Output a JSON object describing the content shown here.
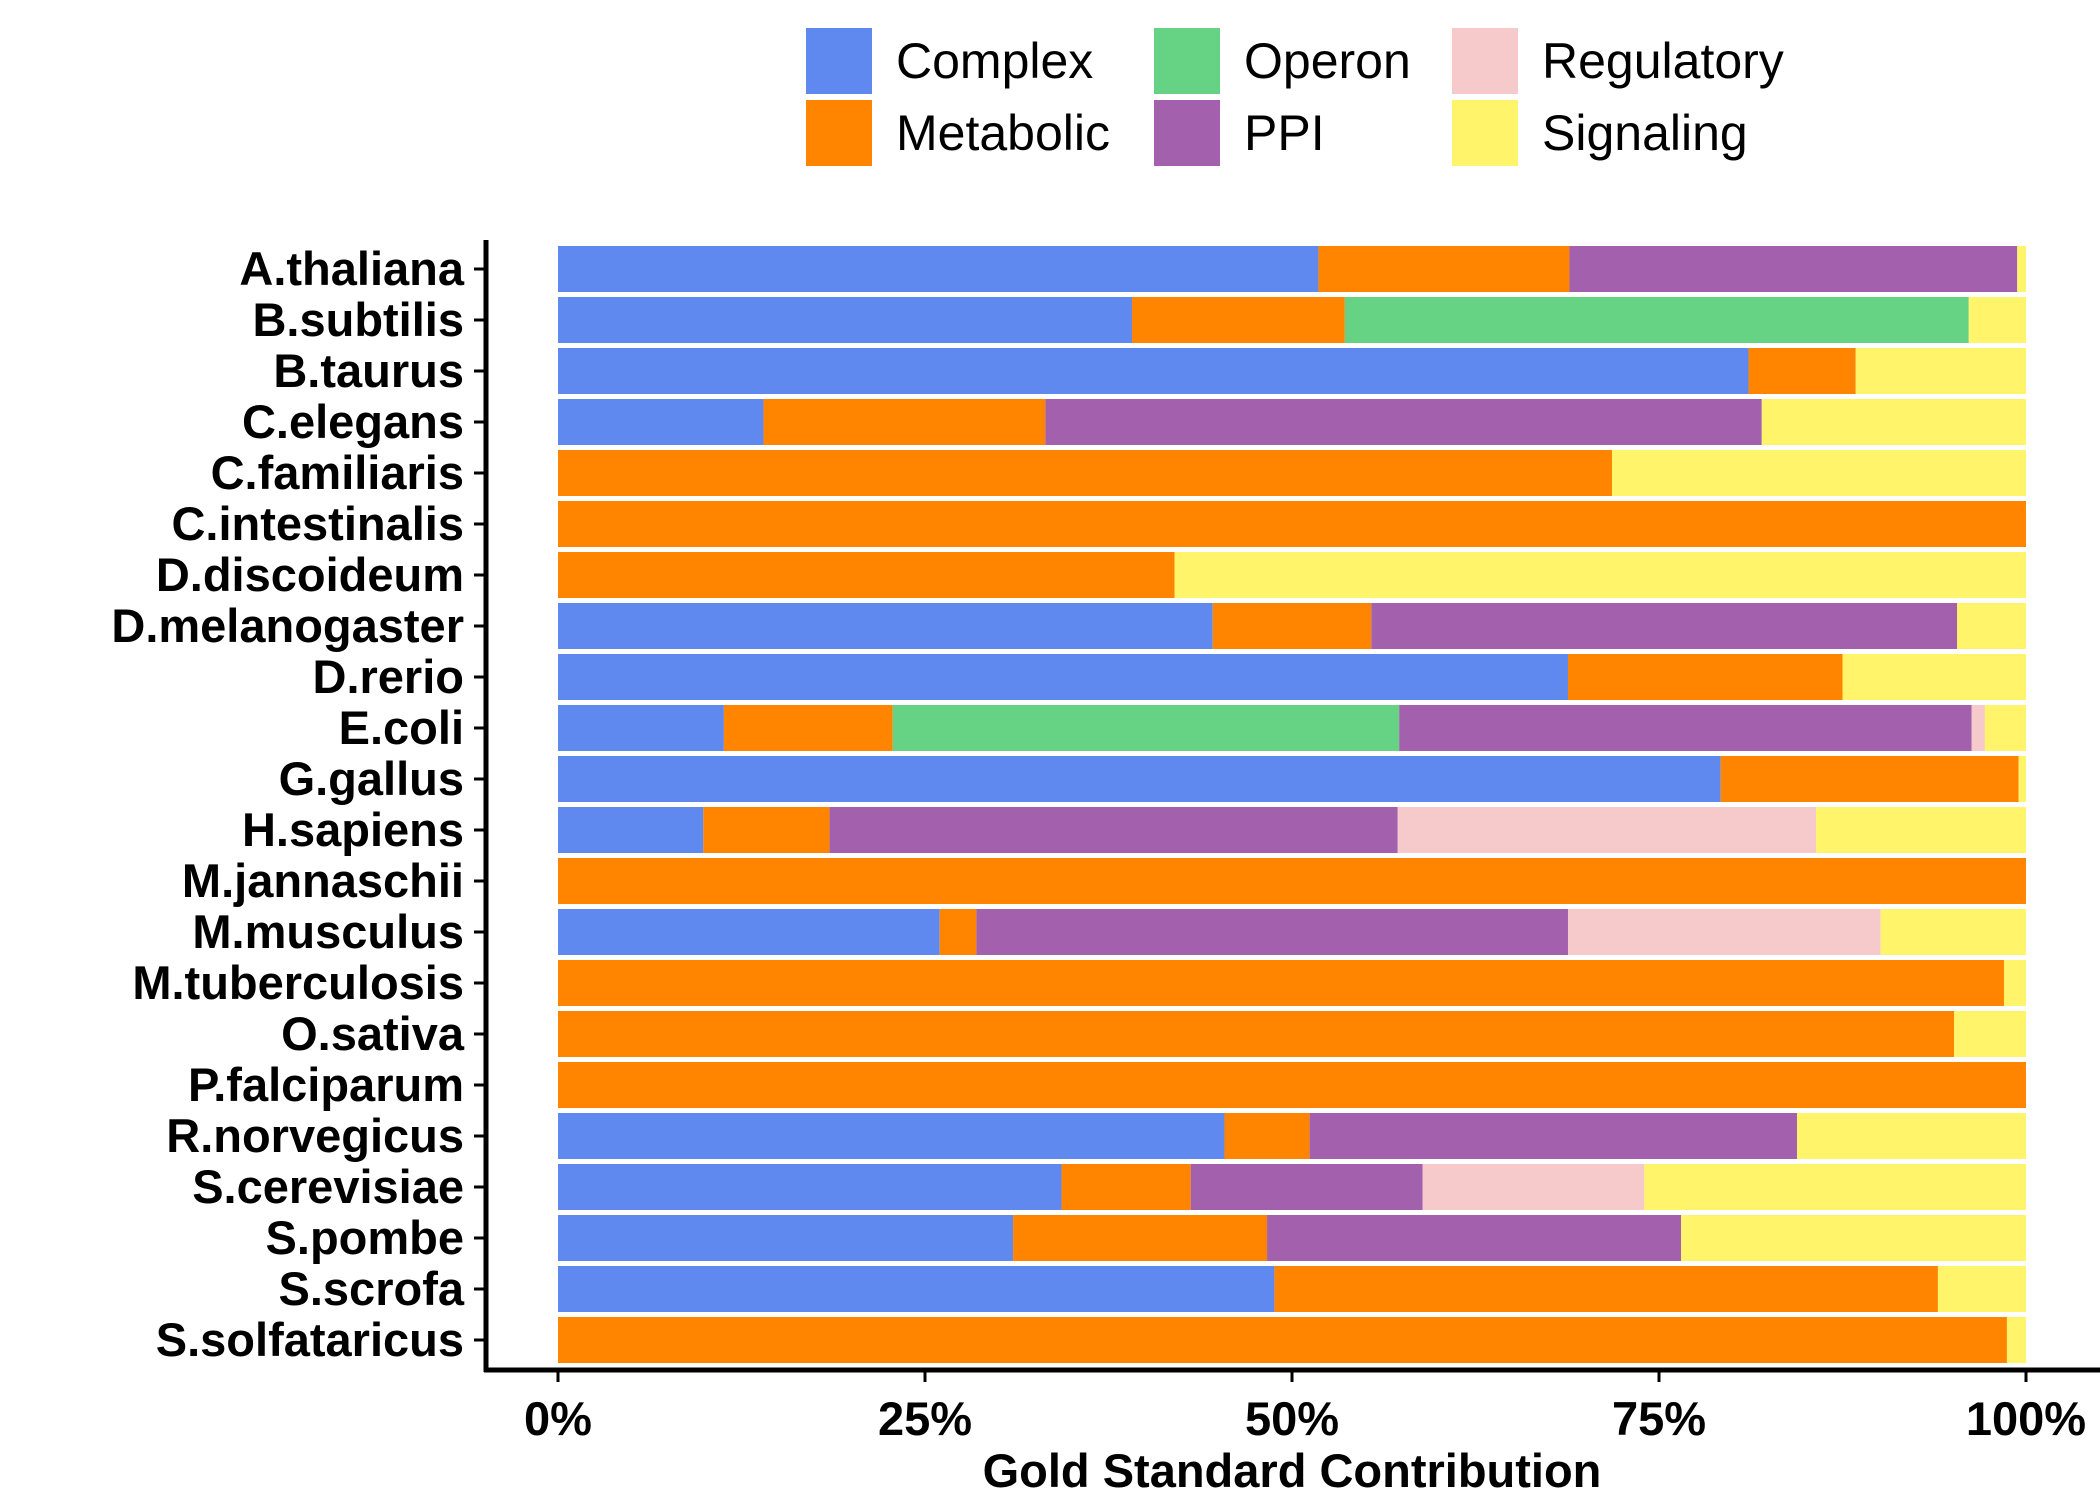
{
  "chart_data": {
    "type": "bar",
    "orientation": "horizontal",
    "stacked": true,
    "normalized": true,
    "xlabel": "Gold Standard Contribution",
    "ylabel": "",
    "xlim": [
      0,
      1
    ],
    "x_ticks": [
      "0%",
      "25%",
      "50%",
      "75%",
      "100%"
    ],
    "grid": false,
    "legend_position": "top",
    "categories": [
      "A.thaliana",
      "B.subtilis",
      "B.taurus",
      "C.elegans",
      "C.familiaris",
      "C.intestinalis",
      "D.discoideum",
      "D.melanogaster",
      "D.rerio",
      "E.coli",
      "G.gallus",
      "H.sapiens",
      "M.jannaschii",
      "M.musculus",
      "M.tuberculosis",
      "O.sativa",
      "P.falciparum",
      "R.norvegicus",
      "S.cerevisiae",
      "S.pombe",
      "S.scrofa",
      "S.solfataricus"
    ],
    "series": [
      {
        "name": "Complex",
        "color": "#6089EF",
        "values": [
          0.518,
          0.391,
          0.811,
          0.14,
          0,
          0,
          0,
          0.446,
          0.688,
          0.113,
          0.792,
          0.099,
          0,
          0.26,
          0,
          0,
          0,
          0.454,
          0.343,
          0.31,
          0.488,
          0
        ]
      },
      {
        "name": "Metabolic",
        "color": "#FF8400",
        "values": [
          0.171,
          0.145,
          0.073,
          0.192,
          0.718,
          1.0,
          0.42,
          0.108,
          0.187,
          0.115,
          0.203,
          0.086,
          1.0,
          0.025,
          0.985,
          0.951,
          1.0,
          0.058,
          0.088,
          0.173,
          0.452,
          0.987
        ]
      },
      {
        "name": "Operon",
        "color": "#66D384",
        "values": [
          0,
          0.425,
          0,
          0,
          0,
          0,
          0,
          0,
          0,
          0.345,
          0,
          0,
          0,
          0,
          0,
          0,
          0,
          0,
          0,
          0,
          0,
          0
        ]
      },
      {
        "name": "PPI",
        "color": "#A260AD",
        "values": [
          0.305,
          0,
          0,
          0.488,
          0,
          0,
          0,
          0.399,
          0,
          0.39,
          0,
          0.387,
          0,
          0.403,
          0,
          0,
          0,
          0.332,
          0.158,
          0.282,
          0,
          0
        ]
      },
      {
        "name": "Regulatory",
        "color": "#F6C9CB",
        "values": [
          0,
          0,
          0,
          0,
          0,
          0,
          0,
          0,
          0,
          0.009,
          0,
          0.285,
          0,
          0.213,
          0,
          0,
          0,
          0,
          0.151,
          0,
          0,
          0
        ]
      },
      {
        "name": "Signaling",
        "color": "#FFF46A",
        "values": [
          0.006,
          0.039,
          0.116,
          0.18,
          0.282,
          0,
          0.58,
          0.047,
          0.125,
          0.028,
          0.005,
          0.143,
          0,
          0.099,
          0.015,
          0.049,
          0,
          0.156,
          0.26,
          0.235,
          0.06,
          0.013
        ]
      }
    ]
  }
}
